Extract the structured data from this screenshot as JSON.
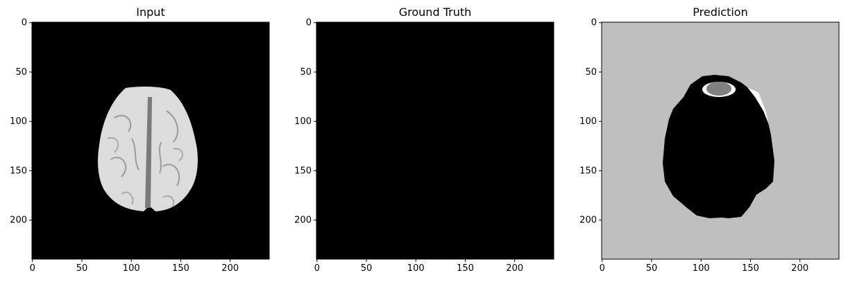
{
  "panels": [
    {
      "title": "Input",
      "kind": "brain-slice",
      "background": "#000000",
      "xticks": [
        "0",
        "50",
        "100",
        "150",
        "200"
      ],
      "yticks": [
        "0",
        "50",
        "100",
        "150",
        "200"
      ],
      "x_tick_values": [
        0,
        50,
        100,
        150,
        200
      ],
      "y_tick_values": [
        0,
        50,
        100,
        150,
        200
      ],
      "image_extent": [
        240,
        240
      ]
    },
    {
      "title": "Ground Truth",
      "kind": "empty-mask",
      "background": "#000000",
      "xticks": [
        "0",
        "50",
        "100",
        "150",
        "200"
      ],
      "yticks": [
        "0",
        "50",
        "100",
        "150",
        "200"
      ],
      "x_tick_values": [
        0,
        50,
        100,
        150,
        200
      ],
      "y_tick_values": [
        0,
        50,
        100,
        150,
        200
      ],
      "image_extent": [
        240,
        240
      ]
    },
    {
      "title": "Prediction",
      "kind": "segmentation",
      "background": "#bfbfbf",
      "xticks": [
        "0",
        "50",
        "100",
        "150",
        "200"
      ],
      "yticks": [
        "0",
        "50",
        "100",
        "150",
        "200"
      ],
      "x_tick_values": [
        0,
        50,
        100,
        150,
        200
      ],
      "y_tick_values": [
        0,
        50,
        100,
        150,
        200
      ],
      "image_extent": [
        240,
        240
      ]
    }
  ],
  "colors": {
    "input_bg": "#000000",
    "brain_tissue": "#d9d9d9",
    "prediction_bg": "#bfbfbf",
    "prediction_mask": "#000000",
    "prediction_lesion": "#808080",
    "prediction_rim": "#ffffff"
  }
}
